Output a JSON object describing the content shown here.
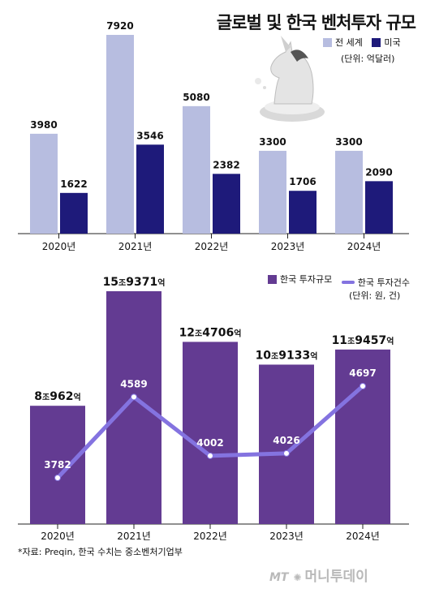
{
  "title": "글로벌 및 한국 벤처투자 규모",
  "colors": {
    "world": "#b7bde0",
    "us": "#1e1a7a",
    "kr_bar": "#633b92",
    "kr_line": "#8473e0"
  },
  "chart_data": [
    {
      "type": "bar",
      "categories": [
        "2020년",
        "2021년",
        "2022년",
        "2023년",
        "2024년"
      ],
      "series": [
        {
          "name": "전 세계",
          "values": [
            3980,
            7920,
            5080,
            3300,
            3300
          ]
        },
        {
          "name": "미국",
          "values": [
            1622,
            3546,
            2382,
            1706,
            2090
          ]
        }
      ],
      "unit": "(단위: 억달러)",
      "ylim": [
        0,
        8200
      ],
      "legend": "top-right"
    },
    {
      "type": "bar+line",
      "categories": [
        "2020년",
        "2021년",
        "2022년",
        "2023년",
        "2024년"
      ],
      "series": [
        {
          "name": "한국 투자규모",
          "type": "bar",
          "values": [
            80962,
            159371,
            124706,
            109133,
            119457
          ],
          "labels": [
            {
              "big": "8",
              "jo": "조",
              "rest": "962",
              "eok": "억"
            },
            {
              "big": "15",
              "jo": "조",
              "rest": "9371",
              "eok": "억"
            },
            {
              "big": "12",
              "jo": "조",
              "rest": "4706",
              "eok": "억"
            },
            {
              "big": "10",
              "jo": "조",
              "rest": "9133",
              "eok": "억"
            },
            {
              "big": "11",
              "jo": "조",
              "rest": "9457",
              "eok": "억"
            }
          ]
        },
        {
          "name": "한국 투자건수",
          "type": "line",
          "values": [
            3782,
            4589,
            4002,
            4026,
            4697
          ]
        }
      ],
      "unit": "(단위: 원, 건)",
      "legend": "top-right"
    }
  ],
  "source": "*자료: Preqin, 한국 수치는 중소벤처기업부",
  "brand": {
    "mt": "MT",
    "name": "머니투데이"
  }
}
